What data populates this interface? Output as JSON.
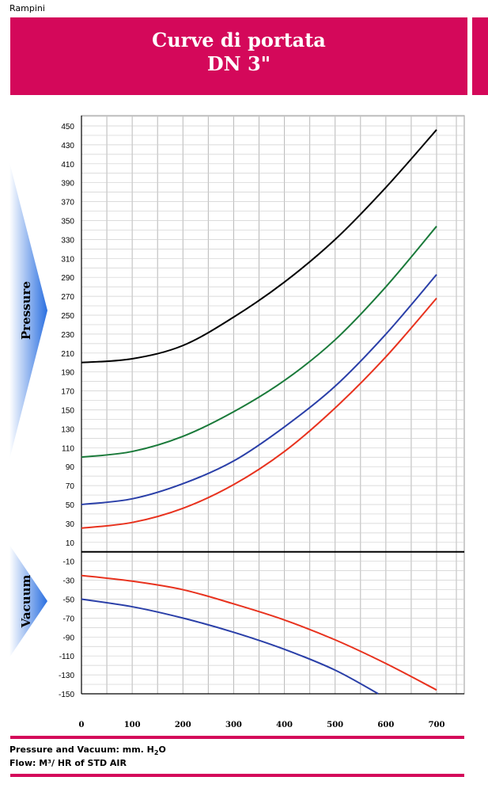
{
  "header": {
    "brand": "Rampini",
    "title_line1": "Curve di portata",
    "title_line2": "DN 3\""
  },
  "footer": {
    "pressure_prefix": "Pressure and Vacuum: mm. H",
    "pressure_sub": "2",
    "pressure_suffix": "O",
    "flow": "Flow: M³/ HR of STD AIR"
  },
  "colors": {
    "banner": "#d4085a",
    "arrow": "#2a6fe0",
    "black": "#000000",
    "green": "#1a7a3a",
    "blue": "#2a3fa8",
    "red": "#e8321e"
  },
  "chart_data": {
    "type": "line",
    "pressure_label": "Pressure",
    "vacuum_label": "Vacuum",
    "x_ticks": [
      0,
      100,
      200,
      300,
      400,
      500,
      600,
      700
    ],
    "y_ticks": [
      450,
      430,
      410,
      390,
      370,
      350,
      330,
      310,
      290,
      270,
      250,
      230,
      210,
      190,
      170,
      150,
      130,
      110,
      90,
      70,
      50,
      30,
      10,
      -10,
      -30,
      -50,
      -70,
      -90,
      -110,
      -130,
      -150
    ],
    "xlim": [
      0,
      760
    ],
    "ylim": [
      -150,
      460
    ],
    "grid": true,
    "series": [
      {
        "color": "black",
        "x": [
          0,
          100,
          200,
          300,
          400,
          500,
          600,
          700
        ],
        "y": [
          200,
          204,
          218,
          248,
          285,
          330,
          385,
          446
        ]
      },
      {
        "color": "green",
        "x": [
          0,
          100,
          200,
          300,
          400,
          500,
          600,
          700
        ],
        "y": [
          100,
          106,
          122,
          148,
          181,
          224,
          280,
          344
        ]
      },
      {
        "color": "blue",
        "x": [
          0,
          100,
          200,
          300,
          400,
          500,
          600,
          700
        ],
        "y": [
          50,
          56,
          72,
          96,
          132,
          175,
          230,
          293
        ]
      },
      {
        "color": "red",
        "x": [
          0,
          100,
          200,
          300,
          400,
          500,
          600,
          700
        ],
        "y": [
          25,
          31,
          46,
          71,
          106,
          152,
          206,
          268
        ]
      },
      {
        "color": "red",
        "x": [
          0,
          100,
          200,
          300,
          400,
          500,
          600,
          700
        ],
        "y": [
          -25,
          -31,
          -40,
          -55,
          -72,
          -93,
          -118,
          -146
        ]
      },
      {
        "color": "blue",
        "x": [
          0,
          100,
          200,
          300,
          400,
          500,
          585
        ],
        "y": [
          -50,
          -58,
          -70,
          -85,
          -103,
          -125,
          -150
        ]
      }
    ]
  }
}
